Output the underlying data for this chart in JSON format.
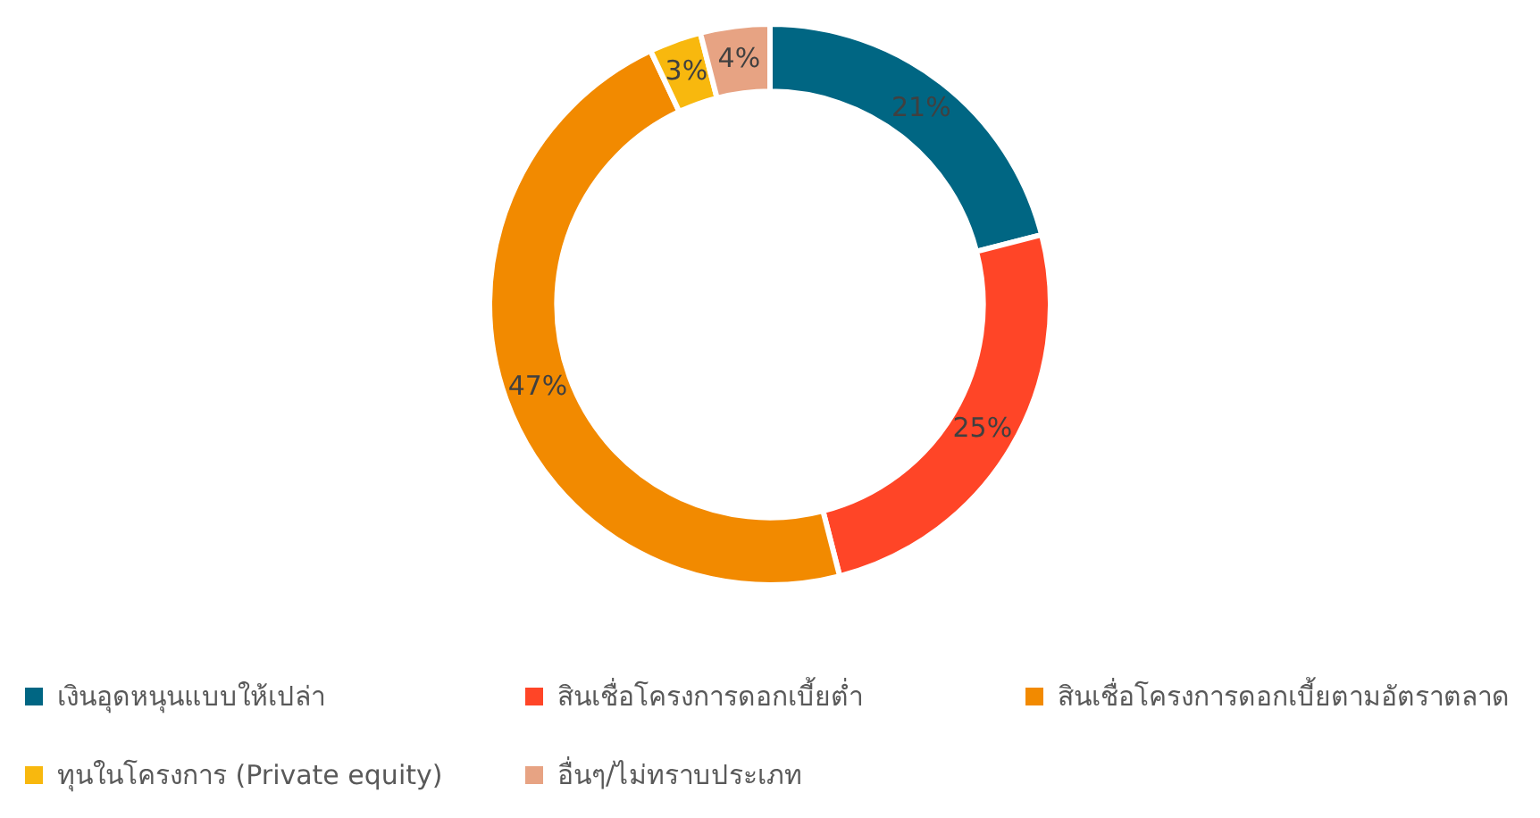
{
  "chart_data": {
    "type": "donut",
    "categories": [
      "เงินอุดหนุนแบบให้เปล่า",
      "สินเชื่อโครงการดอกเบี้ยต่ำ",
      "สินเชื่อโครงการดอกเบี้ยตามอัตราตลาด",
      "ทุนในโครงการ (Private equity)",
      "อื่นๆ/ไม่ทราบประเภท"
    ],
    "values": [
      21,
      25,
      47,
      3,
      4
    ],
    "colors": [
      "#006683",
      "#ff4527",
      "#f28a00",
      "#f8b80e",
      "#e7a383"
    ],
    "value_labels": [
      "21%",
      "25%",
      "47%",
      "3%",
      "4%"
    ],
    "legend": "bottom"
  }
}
